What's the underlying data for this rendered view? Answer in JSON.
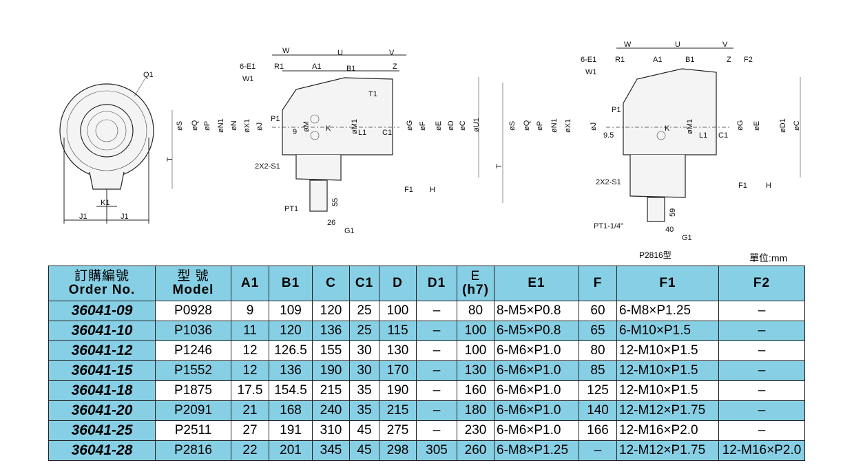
{
  "drawing_labels": {
    "front": [
      "Q1",
      "K1",
      "J1",
      "J1"
    ],
    "side": [
      "W",
      "U",
      "V",
      "6-E1",
      "R1",
      "A1",
      "B1",
      "Z",
      "W1",
      "T1",
      "P1",
      "9",
      "K",
      "L1",
      "C1",
      "øS",
      "øQ",
      "øP",
      "øN1",
      "øN",
      "øX1",
      "øJ",
      "øM",
      "øM1",
      "øG",
      "øF",
      "øE",
      "øD",
      "øC",
      "øU1",
      "T",
      "2X2-S1",
      "F1",
      "H",
      "PT1",
      "55",
      "26",
      "G1"
    ],
    "p2816": [
      "W",
      "U",
      "V",
      "6-E1",
      "R1",
      "A1",
      "B1",
      "Z",
      "F2",
      "W1",
      "P1",
      "9.5",
      "K",
      "L1",
      "C1",
      "øS",
      "øQ",
      "øP",
      "øN1",
      "øX1",
      "øJ",
      "øM1",
      "øG",
      "øE",
      "øD1",
      "øC",
      "T",
      "2X2-S1",
      "F1",
      "H",
      "PT1-1/4\"",
      "59",
      "40",
      "G1"
    ]
  },
  "caption": "P2816型",
  "unit": "單位:mm",
  "table": {
    "headers": [
      {
        "zh": "訂購編號",
        "en": "Order No."
      },
      {
        "zh": "型 號",
        "en": "Model"
      },
      {
        "en": "A1"
      },
      {
        "en": "B1"
      },
      {
        "en": "C"
      },
      {
        "en": "C1"
      },
      {
        "en": "D"
      },
      {
        "en": "D1"
      },
      {
        "zh": "E",
        "en": "(h7)"
      },
      {
        "en": "E1"
      },
      {
        "en": "F"
      },
      {
        "en": "F1"
      },
      {
        "en": "F2"
      }
    ],
    "rows": [
      [
        "36041-09",
        "P0928",
        "9",
        "109",
        "120",
        "25",
        "100",
        "–",
        "80",
        "8-M5×P0.8",
        "60",
        "6-M8×P1.25",
        "–"
      ],
      [
        "36041-10",
        "P1036",
        "11",
        "120",
        "136",
        "25",
        "115",
        "–",
        "100",
        "6-M5×P0.8",
        "65",
        "6-M10×P1.5",
        "–"
      ],
      [
        "36041-12",
        "P1246",
        "12",
        "126.5",
        "155",
        "30",
        "130",
        "–",
        "100",
        "6-M6×P1.0",
        "80",
        "12-M10×P1.5",
        "–"
      ],
      [
        "36041-15",
        "P1552",
        "12",
        "136",
        "190",
        "30",
        "170",
        "–",
        "130",
        "6-M6×P1.0",
        "85",
        "12-M10×P1.5",
        "–"
      ],
      [
        "36041-18",
        "P1875",
        "17.5",
        "154.5",
        "215",
        "35",
        "190",
        "–",
        "160",
        "6-M6×P1.0",
        "125",
        "12-M10×P1.5",
        "–"
      ],
      [
        "36041-20",
        "P2091",
        "21",
        "168",
        "240",
        "35",
        "215",
        "–",
        "180",
        "6-M6×P1.0",
        "140",
        "12-M12×P1.75",
        "–"
      ],
      [
        "36041-25",
        "P2511",
        "27",
        "191",
        "310",
        "45",
        "275",
        "–",
        "230",
        "6-M6×P1.0",
        "166",
        "12-M16×P2.0",
        "–"
      ],
      [
        "36041-28",
        "P2816",
        "22",
        "201",
        "345",
        "45",
        "298",
        "305",
        "260",
        "6-M8×P1.25",
        "–",
        "12-M12×P1.75",
        "12-M16×P2.0"
      ]
    ]
  },
  "colors": {
    "header_bg": "#87cfe5"
  }
}
